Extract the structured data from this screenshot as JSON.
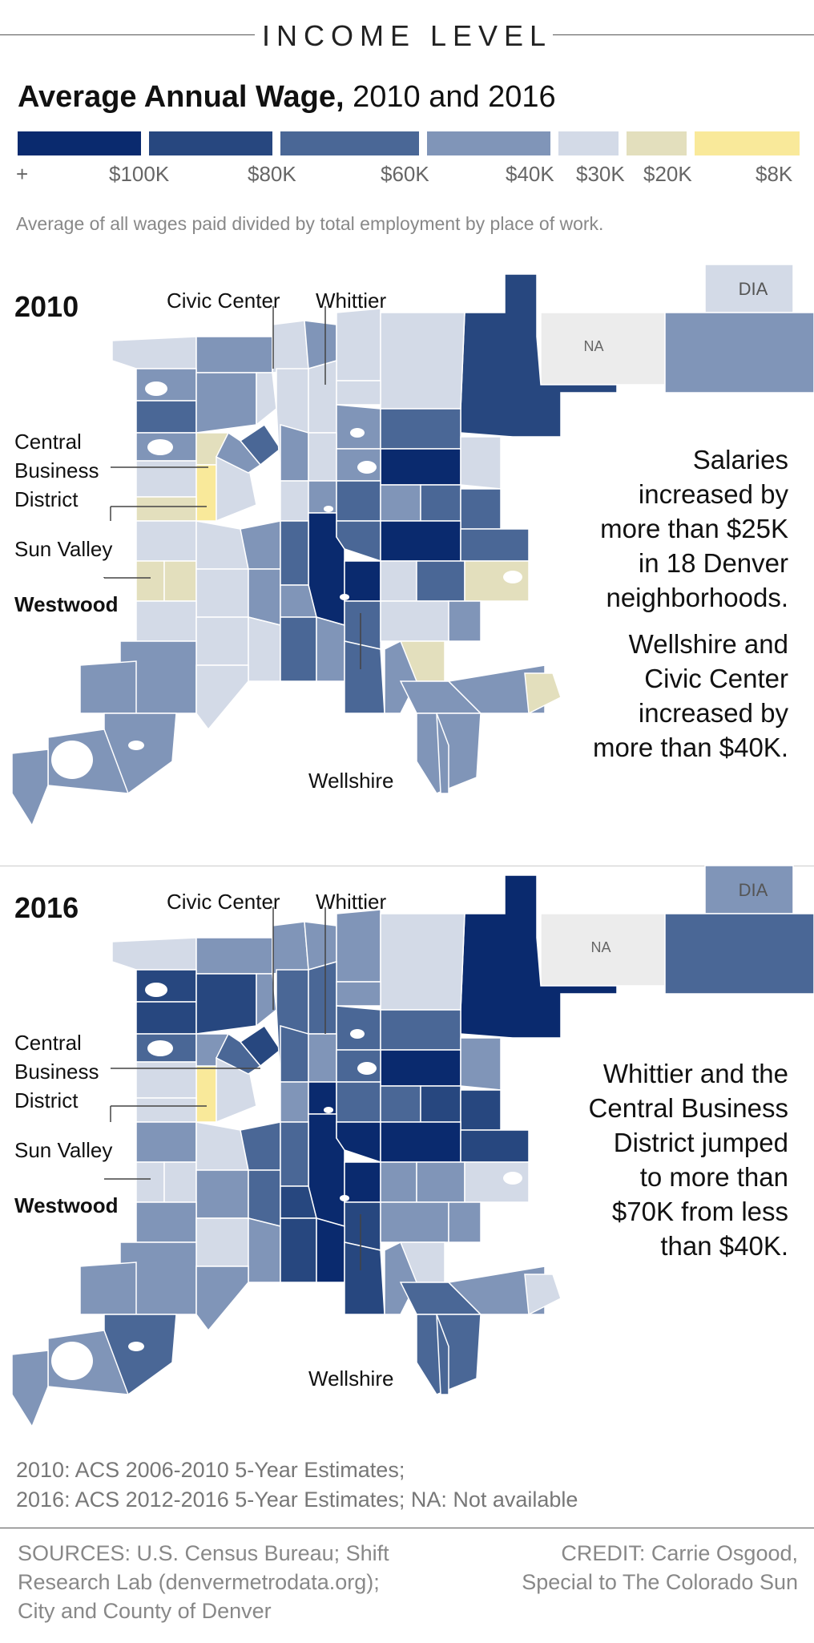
{
  "section_title": "INCOME LEVEL",
  "chart_title_bold": "Average Annual Wage,",
  "chart_title_rest": " 2010 and 2016",
  "legend": {
    "colors": [
      "#0a2a6e",
      "#27477f",
      "#4a6796",
      "#8095b8",
      "#d3dae7",
      "#e3dfbd",
      "#f9e99a"
    ],
    "labels": [
      "+",
      "$100K",
      "$80K",
      "$60K",
      "$40K",
      "$30K",
      "$20K",
      "$8K"
    ]
  },
  "description": "Average of all wages paid divided by total employment by place of work.",
  "map_2010": {
    "year": "2010",
    "labels": {
      "civic_center": "Civic Center",
      "whittier": "Whittier",
      "central_business_district_1": "Central",
      "central_business_district_2": "Business",
      "central_business_district_3": "District",
      "sun_valley": "Sun Valley",
      "westwood": "Westwood",
      "wellshire": "Wellshire",
      "dia": "DIA",
      "na": "NA"
    },
    "callout_1": [
      "Salaries",
      "increased by",
      "more than $25K",
      "in 18 Denver",
      "neighborhoods."
    ],
    "callout_2": [
      "Wellshire and",
      "Civic Center",
      "increased by",
      "more than $40K."
    ]
  },
  "map_2016": {
    "year": "2016",
    "labels": {
      "civic_center": "Civic Center",
      "whittier": "Whittier",
      "central_business_district_1": "Central",
      "central_business_district_2": "Business",
      "central_business_district_3": "District",
      "sun_valley": "Sun Valley",
      "westwood": "Westwood",
      "wellshire": "Wellshire",
      "dia": "DIA",
      "na": "NA"
    },
    "callout_1": [
      "Whittier and the",
      "Central Business",
      "District jumped",
      "to more than",
      "$70K from less",
      "than $40K."
    ]
  },
  "notes": [
    "2010: ACS 2006-2010 5-Year Estimates;",
    "2016: ACS 2012-2016 5-Year Estimates; NA: Not available"
  ],
  "sources": [
    "SOURCES: U.S. Census Bureau; Shift",
    "Research Lab (denvermetrodata.org);",
    "City and County of Denver"
  ],
  "credit": [
    "CREDIT: Carrie Osgood,",
    "Special to The Colorado Sun"
  ]
}
